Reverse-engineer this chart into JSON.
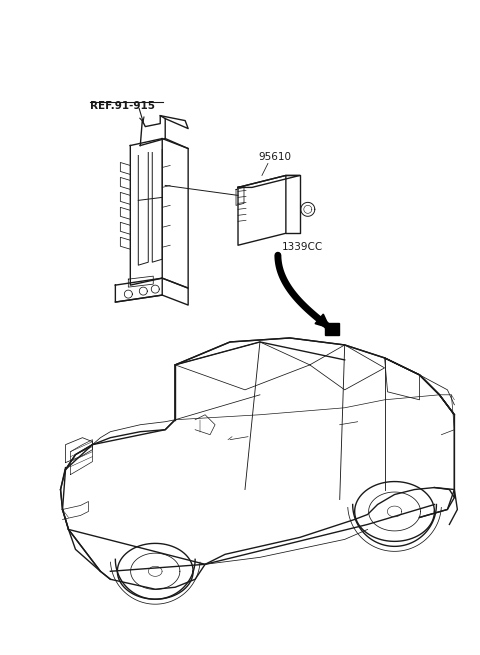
{
  "bg_color": "#ffffff",
  "line_color": "#1a1a1a",
  "label_ref": "REF.91-915",
  "label_95610": "95610",
  "label_1339cc": "1339CC",
  "fig_width": 4.8,
  "fig_height": 6.55,
  "dpi": 100
}
